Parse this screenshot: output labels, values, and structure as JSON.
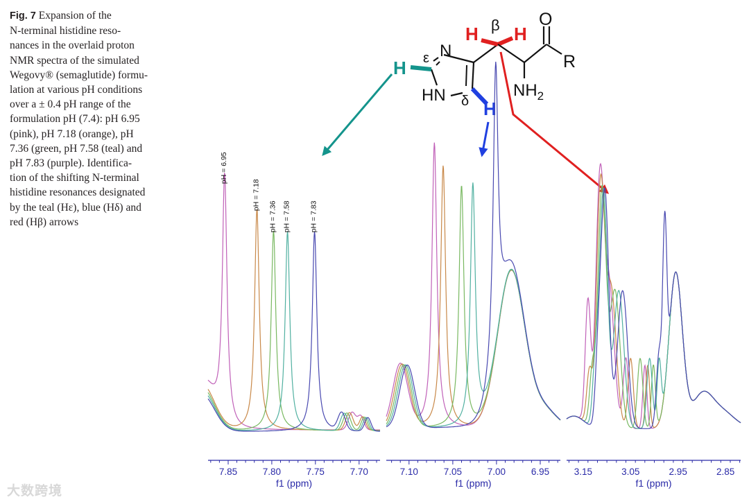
{
  "caption": {
    "label": "Fig. 7",
    "text": "Expansion of the\nN-terminal histidine reso-\nnances in the overlaid proton\nNMR spectra of the simulated\nWegovy® (semaglutide) formu-\nlation at various pH conditions\nover a ± 0.4 pH range of the\nformulation pH (7.4): pH 6.95\n(pink), pH 7.18 (orange), pH\n7.36 (green, pH 7.58 (teal) and\npH 7.83 (purple). Identifica-\ntion of the shifting N-terminal\nhistidine resonances designated\nby the teal (Hε), blue (Hδ) and\nred (Hβ) arrows"
  },
  "watermark": "大数跨境",
  "structure": {
    "h_epsilon": "H",
    "epsilon": "ε",
    "n_ring": "N",
    "hn_ring": "HN",
    "delta": "δ",
    "h_delta": "H",
    "h_beta_left": "H",
    "beta": "β",
    "h_beta_right": "H",
    "oxygen": "O",
    "r_group": "R",
    "amine_base": "NH",
    "amine_sub": "2"
  },
  "colors": {
    "ph_6_95": "#c060b8",
    "ph_7_18": "#c88848",
    "ph_7_36": "#78b860",
    "ph_7_58": "#50b0a0",
    "ph_7_83": "#4848b0",
    "arrow_epsilon": "#14948c",
    "arrow_delta": "#2040e0",
    "arrow_beta": "#e02020",
    "axis": "#2a2aa8"
  },
  "chart_data": {
    "type": "line",
    "xlabel": "f1 (ppm)",
    "series_order": [
      "ph_6_95",
      "ph_7_18",
      "ph_7_36",
      "ph_7_58",
      "ph_7_83"
    ],
    "panels": [
      {
        "id": "epsilon",
        "xlim": [
          7.873,
          7.676
        ],
        "ticks": [
          "7.85",
          "7.80",
          "7.75",
          "7.70"
        ],
        "tick_values": [
          7.85,
          7.8,
          7.75,
          7.7
        ],
        "peak_labels": [
          "pH = 6.95",
          "pH = 7.18",
          "pH = 7.36",
          "pH = 7.58",
          "pH = 7.83"
        ],
        "series": [
          {
            "name": "pH = 6.95",
            "peak_ppm": 7.854,
            "height": 0.92
          },
          {
            "name": "pH = 7.18",
            "peak_ppm": 7.817,
            "height": 0.82
          },
          {
            "name": "pH = 7.36",
            "peak_ppm": 7.798,
            "height": 0.74
          },
          {
            "name": "pH = 7.58",
            "peak_ppm": 7.782,
            "height": 0.74
          },
          {
            "name": "pH = 7.83",
            "peak_ppm": 7.751,
            "height": 0.74
          }
        ]
      },
      {
        "id": "delta",
        "xlim": [
          7.126,
          6.927
        ],
        "ticks": [
          "7.10",
          "7.05",
          "7.00",
          "6.95"
        ],
        "tick_values": [
          7.1,
          7.05,
          7.0,
          6.95
        ],
        "series": [
          {
            "name": "pH = 6.95",
            "peak_ppm": 7.071,
            "height": 1.0
          },
          {
            "name": "pH = 7.18",
            "peak_ppm": 7.061,
            "height": 0.92
          },
          {
            "name": "pH = 7.36",
            "peak_ppm": 7.04,
            "height": 0.85
          },
          {
            "name": "pH = 7.58",
            "peak_ppm": 7.027,
            "height": 0.85
          },
          {
            "name": "pH = 7.83",
            "peak_ppm": 7.001,
            "height": 1.0
          }
        ]
      },
      {
        "id": "beta",
        "xlim": [
          3.185,
          2.818
        ],
        "ticks": [
          "3.15",
          "3.05",
          "2.95",
          "2.85"
        ],
        "tick_values": [
          3.15,
          3.05,
          2.95,
          2.85
        ],
        "series": [
          {
            "name": "pH = 6.95",
            "shift_ppm": 0.0
          },
          {
            "name": "pH = 7.18",
            "shift_ppm": -0.01
          },
          {
            "name": "pH = 7.36",
            "shift_ppm": -0.03
          },
          {
            "name": "pH = 7.58",
            "shift_ppm": -0.05
          },
          {
            "name": "pH = 7.83",
            "shift_ppm": -0.07
          }
        ]
      }
    ]
  }
}
